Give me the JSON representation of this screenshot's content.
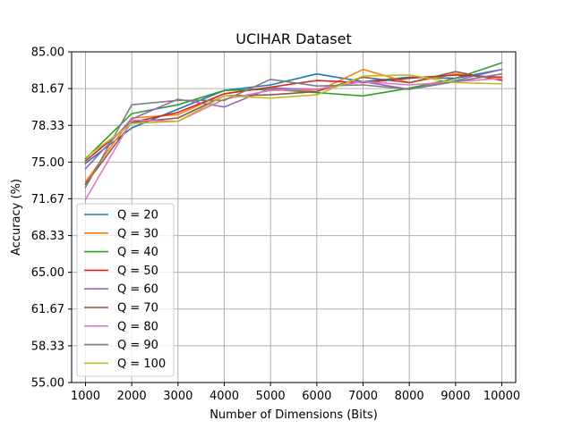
{
  "chart_data": {
    "type": "line",
    "title": "UCIHAR Dataset",
    "xlabel": "Number of Dimensions (Bits)",
    "ylabel": "Accuracy (%)",
    "x": [
      1000,
      2000,
      3000,
      4000,
      5000,
      6000,
      7000,
      8000,
      9000,
      10000
    ],
    "x_tick_labels": [
      "1000",
      "2000",
      "3000",
      "4000",
      "5000",
      "6000",
      "7000",
      "8000",
      "9000",
      "10000"
    ],
    "xlim": [
      700,
      10300
    ],
    "ylim": [
      55.0,
      85.0
    ],
    "y_ticks": [
      55.0,
      58.33,
      61.67,
      65.0,
      68.33,
      71.67,
      75.0,
      78.33,
      81.67,
      85.0
    ],
    "y_tick_labels": [
      "55.00",
      "58.33",
      "61.67",
      "65.00",
      "68.33",
      "71.67",
      "75.00",
      "78.33",
      "81.67",
      "85.00"
    ],
    "grid": true,
    "legend_position": "lower-left",
    "series": [
      {
        "name": "Q = 20",
        "color": "#1f77b4",
        "values": [
          74.9,
          78.1,
          79.8,
          81.5,
          82.0,
          83.0,
          82.3,
          82.7,
          82.6,
          83.4
        ]
      },
      {
        "name": "Q = 30",
        "color": "#ff7f0e",
        "values": [
          73.2,
          79.0,
          79.3,
          81.2,
          81.8,
          81.4,
          83.4,
          82.2,
          83.0,
          82.5
        ]
      },
      {
        "name": "Q = 40",
        "color": "#2ca02c",
        "values": [
          75.3,
          79.4,
          80.2,
          81.5,
          81.6,
          81.3,
          81.0,
          81.7,
          82.6,
          84.0
        ]
      },
      {
        "name": "Q = 50",
        "color": "#d62728",
        "values": [
          75.1,
          78.6,
          79.5,
          81.2,
          81.8,
          82.4,
          82.2,
          82.6,
          82.9,
          82.7
        ]
      },
      {
        "name": "Q = 60",
        "color": "#9467bd",
        "values": [
          74.4,
          78.9,
          80.7,
          80.0,
          81.7,
          81.6,
          82.3,
          81.6,
          82.4,
          83.4
        ]
      },
      {
        "name": "Q = 70",
        "color": "#8c564b",
        "values": [
          73.0,
          78.6,
          79.0,
          81.0,
          81.1,
          81.4,
          82.7,
          82.2,
          83.2,
          82.4
        ]
      },
      {
        "name": "Q = 80",
        "color": "#e377c2",
        "values": [
          71.6,
          78.8,
          78.7,
          80.7,
          81.5,
          81.6,
          82.3,
          82.0,
          82.3,
          82.6
        ]
      },
      {
        "name": "Q = 90",
        "color": "#7f7f7f",
        "values": [
          72.7,
          80.2,
          80.6,
          80.6,
          82.5,
          81.9,
          82.0,
          81.6,
          82.3,
          83.0
        ]
      },
      {
        "name": "Q = 100",
        "color": "#bcbd22",
        "values": [
          75.4,
          78.5,
          78.7,
          81.0,
          80.8,
          81.1,
          82.8,
          82.9,
          82.2,
          82.1
        ]
      }
    ]
  }
}
